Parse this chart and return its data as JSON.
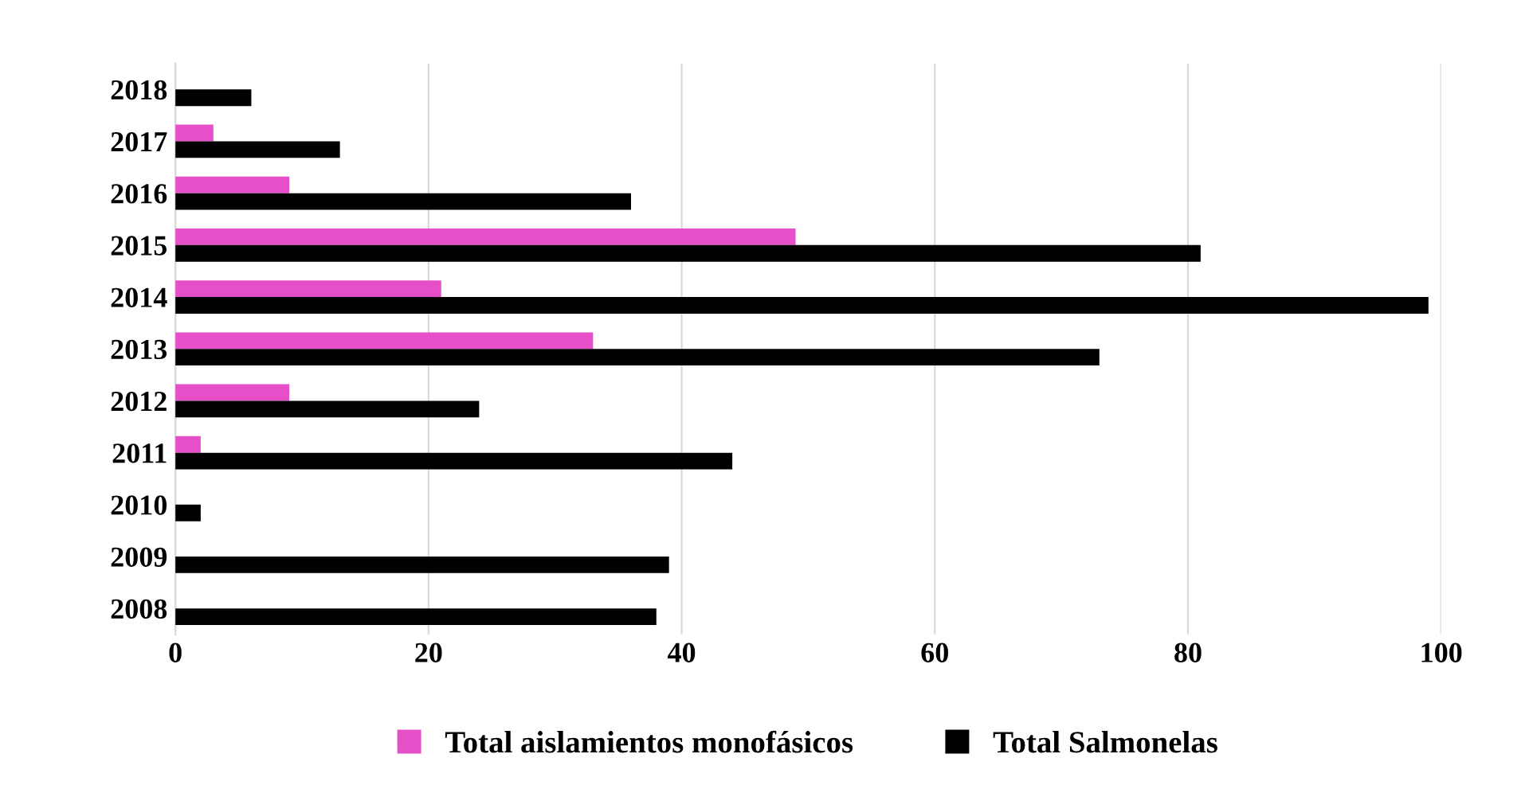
{
  "chart_data": {
    "type": "bar",
    "orientation": "horizontal",
    "categories": [
      "2018",
      "2017",
      "2016",
      "2015",
      "2014",
      "2013",
      "2012",
      "2011",
      "2010",
      "2009",
      "2008"
    ],
    "series": [
      {
        "name": "Total aislamientos monofásicos",
        "color": "#e64fc8",
        "values": [
          0,
          3,
          9,
          49,
          21,
          33,
          9,
          2,
          0,
          0,
          0
        ]
      },
      {
        "name": "Total Salmonelas",
        "color": "#000000",
        "values": [
          6,
          13,
          36,
          81,
          99,
          73,
          24,
          44,
          2,
          39,
          38
        ]
      }
    ],
    "xlim": [
      0,
      100
    ],
    "xticks": [
      0,
      20,
      40,
      60,
      80,
      100
    ],
    "grid": "x",
    "legend": "bottom"
  }
}
